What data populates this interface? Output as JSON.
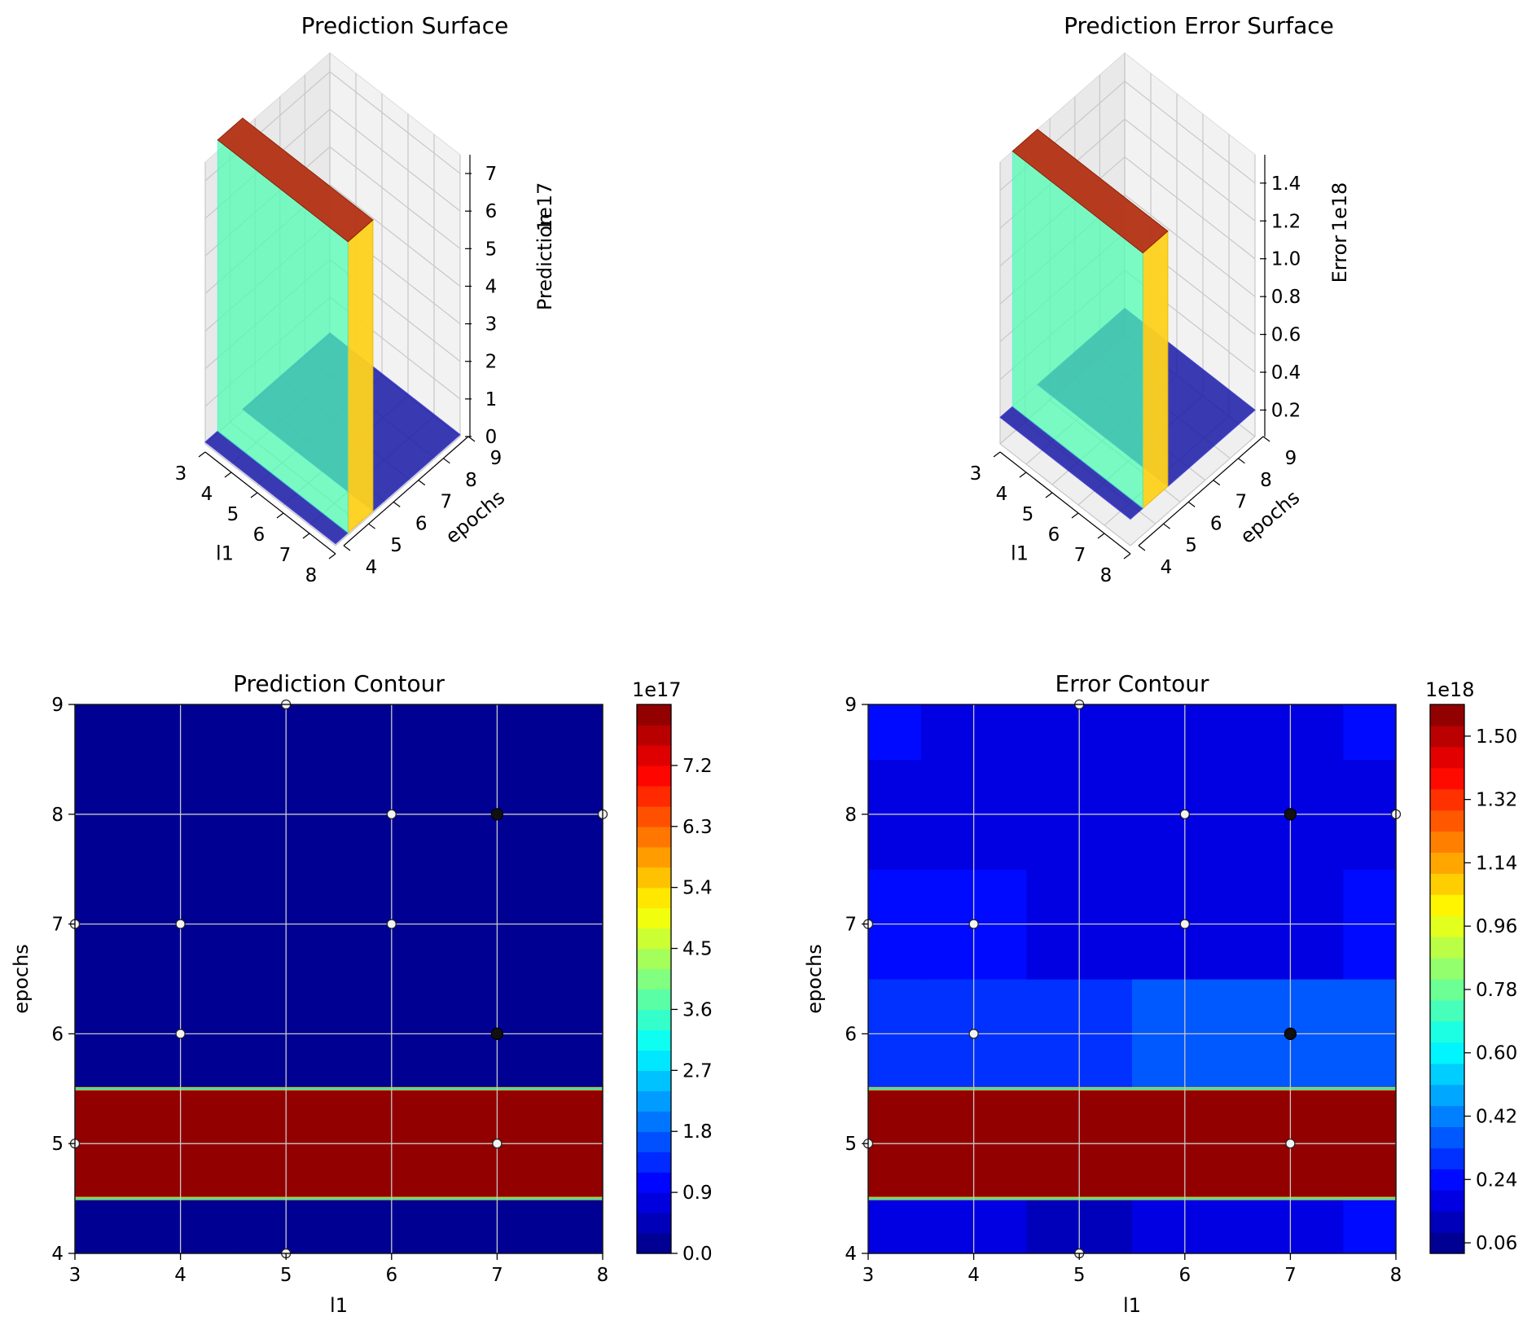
{
  "chart_data": [
    {
      "type": "surface3d",
      "title": "Prediction Surface",
      "xlabel": "l1",
      "ylabel": "epochs",
      "zlabel": "Prediction",
      "z_offset_label": "1e17",
      "x_ticks": [
        "3",
        "4",
        "5",
        "6",
        "7",
        "8"
      ],
      "y_ticks": [
        "4",
        "5",
        "6",
        "7",
        "8",
        "9"
      ],
      "z_ticks": [
        "0",
        "1",
        "2",
        "3",
        "4",
        "5",
        "6",
        "7"
      ],
      "xlim": [
        3,
        8
      ],
      "ylim": [
        4,
        9
      ],
      "zlim": [
        0,
        7.5
      ],
      "colormap": "jet",
      "plateau": {
        "epochs_from": 4.5,
        "epochs_to": 5.5,
        "value": 7.8
      },
      "baseline_value": 0.05
    },
    {
      "type": "surface3d",
      "title": "Prediction Error Surface",
      "xlabel": "l1",
      "ylabel": "epochs",
      "zlabel": "Error",
      "z_offset_label": "1e18",
      "x_ticks": [
        "3",
        "4",
        "5",
        "6",
        "7",
        "8"
      ],
      "y_ticks": [
        "4",
        "5",
        "6",
        "7",
        "8",
        "9"
      ],
      "z_ticks": [
        "0.2",
        "0.4",
        "0.6",
        "0.8",
        "1.0",
        "1.2",
        "1.4"
      ],
      "xlim": [
        3,
        8
      ],
      "ylim": [
        4,
        9
      ],
      "zlim": [
        0.06,
        1.55
      ],
      "colormap": "jet",
      "plateau": {
        "epochs_from": 4.5,
        "epochs_to": 5.5,
        "value": 1.55
      },
      "baseline_value": 0.2
    },
    {
      "type": "heatmap",
      "title": "Prediction Contour",
      "xlabel": "l1",
      "ylabel": "epochs",
      "x_ticks": [
        "3",
        "4",
        "5",
        "6",
        "7",
        "8"
      ],
      "y_ticks": [
        "4",
        "5",
        "6",
        "7",
        "8",
        "9"
      ],
      "x": [
        3,
        4,
        5,
        6,
        7,
        8
      ],
      "y": [
        4,
        5,
        6,
        7,
        8,
        9
      ],
      "z": [
        [
          0,
          0,
          0,
          0,
          0,
          0
        ],
        [
          7.8,
          7.8,
          7.8,
          7.8,
          7.8,
          7.8
        ],
        [
          0,
          0,
          0,
          0,
          0,
          0
        ],
        [
          0,
          0,
          0,
          0,
          0,
          0
        ],
        [
          0,
          0,
          0,
          0,
          0,
          0
        ],
        [
          0,
          0,
          0,
          0,
          0,
          0
        ]
      ],
      "zlim": [
        0,
        8.1
      ],
      "colorbar_offset": "1e17",
      "colorbar_ticks": [
        "0.0",
        "0.9",
        "1.8",
        "2.7",
        "3.6",
        "4.5",
        "5.4",
        "6.3",
        "7.2"
      ],
      "colorbar_tick_values": [
        0,
        0.9,
        1.8,
        2.7,
        3.6,
        4.5,
        5.4,
        6.3,
        7.2
      ],
      "levels": 27,
      "grid": true,
      "points": [
        [
          5,
          9,
          "light"
        ],
        [
          6,
          8,
          "light"
        ],
        [
          7,
          8,
          "dark"
        ],
        [
          8,
          8,
          "light"
        ],
        [
          3,
          7,
          "light"
        ],
        [
          4,
          7,
          "light"
        ],
        [
          6,
          7,
          "light"
        ],
        [
          4,
          6,
          "light"
        ],
        [
          7,
          6,
          "dark"
        ],
        [
          3,
          5,
          "light"
        ],
        [
          7,
          5,
          "light"
        ],
        [
          5,
          4,
          "light"
        ]
      ]
    },
    {
      "type": "heatmap",
      "title": "Error Contour",
      "xlabel": "l1",
      "ylabel": "epochs",
      "x_ticks": [
        "3",
        "4",
        "5",
        "6",
        "7",
        "8"
      ],
      "y_ticks": [
        "4",
        "5",
        "6",
        "7",
        "8",
        "9"
      ],
      "x": [
        3,
        4,
        5,
        6,
        7,
        8
      ],
      "y": [
        4,
        5,
        6,
        7,
        8,
        9
      ],
      "z": [
        [
          0.18,
          0.17,
          0.1,
          0.18,
          0.18,
          0.22
        ],
        [
          1.55,
          1.55,
          1.55,
          1.55,
          1.55,
          1.55
        ],
        [
          0.28,
          0.28,
          0.28,
          0.36,
          0.36,
          0.38
        ],
        [
          0.26,
          0.22,
          0.18,
          0.18,
          0.18,
          0.22
        ],
        [
          0.2,
          0.16,
          0.16,
          0.16,
          0.16,
          0.18
        ],
        [
          0.22,
          0.2,
          0.2,
          0.2,
          0.2,
          0.22
        ]
      ],
      "zlim": [
        0.03,
        1.59
      ],
      "colorbar_offset": "1e18",
      "colorbar_ticks": [
        "0.06",
        "0.24",
        "0.42",
        "0.60",
        "0.78",
        "0.96",
        "1.14",
        "1.32",
        "1.50"
      ],
      "colorbar_tick_values": [
        0.06,
        0.24,
        0.42,
        0.6,
        0.78,
        0.96,
        1.14,
        1.32,
        1.5
      ],
      "levels": 26,
      "grid": true,
      "points": [
        [
          5,
          9,
          "light"
        ],
        [
          6,
          8,
          "light"
        ],
        [
          7,
          8,
          "dark"
        ],
        [
          8,
          8,
          "light"
        ],
        [
          3,
          7,
          "light"
        ],
        [
          4,
          7,
          "light"
        ],
        [
          6,
          7,
          "light"
        ],
        [
          4,
          6,
          "light"
        ],
        [
          7,
          6,
          "dark"
        ],
        [
          3,
          5,
          "light"
        ],
        [
          7,
          5,
          "light"
        ],
        [
          5,
          4,
          "light"
        ]
      ]
    }
  ]
}
